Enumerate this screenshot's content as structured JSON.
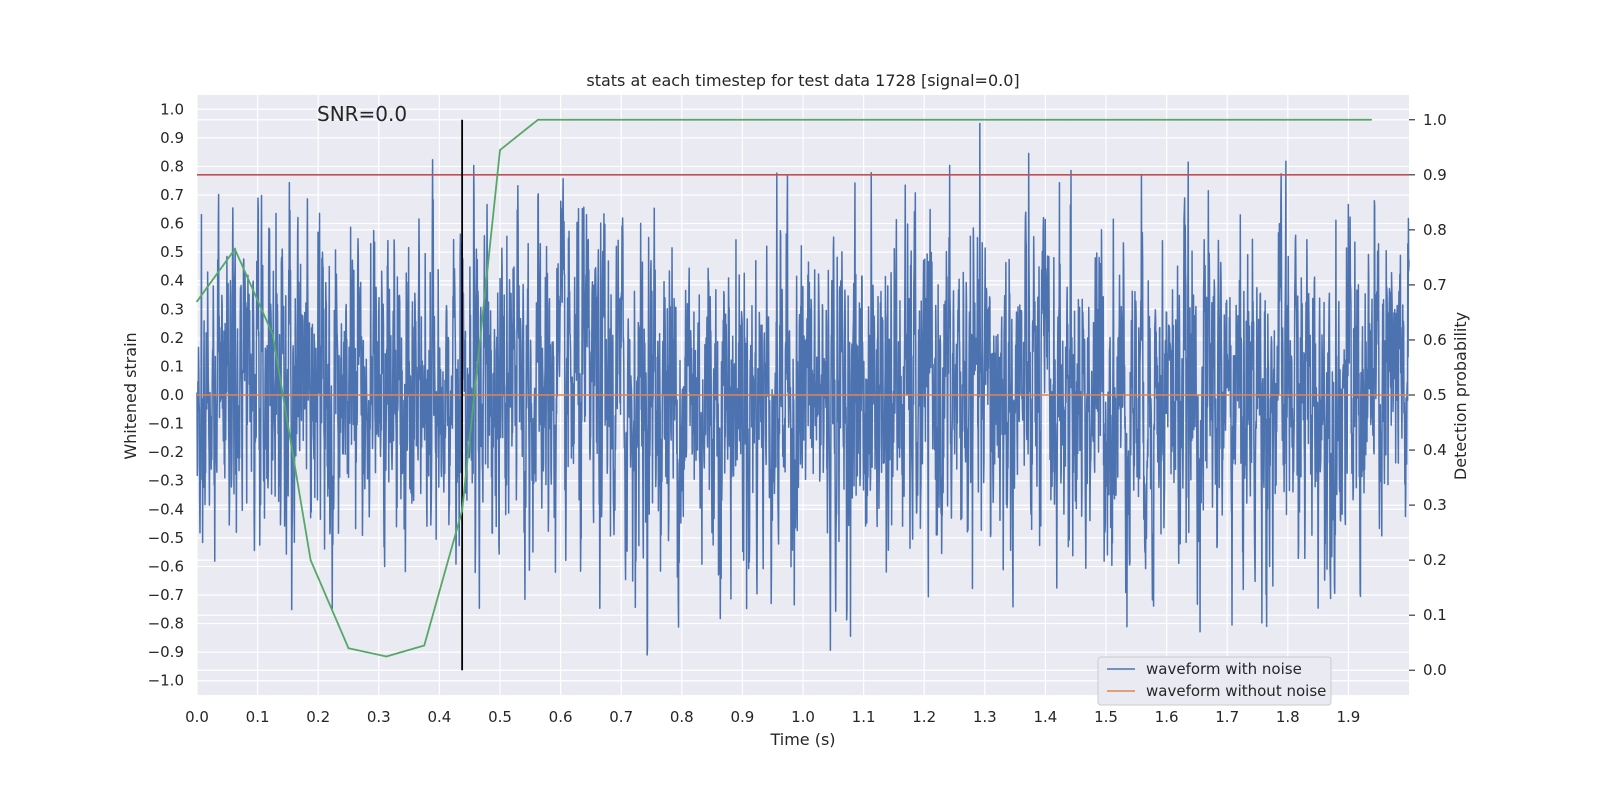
{
  "chart_data": {
    "type": "line",
    "title": "stats at each timestep for test data 1728 [signal=0.0]",
    "xlabel": "Time (s)",
    "ylabel": "Whitened strain",
    "y2label": "Detection probability",
    "xlim": [
      0.0,
      2.0
    ],
    "ylim": [
      -1.05,
      1.05
    ],
    "y2lim": [
      -0.045,
      1.045
    ],
    "x_ticks": [
      0.0,
      0.1,
      0.2,
      0.3,
      0.4,
      0.5,
      0.6,
      0.7,
      0.8,
      0.9,
      1.0,
      1.1,
      1.2,
      1.3,
      1.4,
      1.5,
      1.6,
      1.7,
      1.8,
      1.9
    ],
    "x_tick_labels": [
      "0.0",
      "0.1",
      "0.2",
      "0.3",
      "0.4",
      "0.5",
      "0.6",
      "0.7",
      "0.8",
      "0.9",
      "1.0",
      "1.1",
      "1.2",
      "1.3",
      "1.4",
      "1.5",
      "1.6",
      "1.7",
      "1.8",
      "1.9"
    ],
    "y_ticks": [
      -1.0,
      -0.9,
      -0.8,
      -0.7,
      -0.6,
      -0.5,
      -0.4,
      -0.3,
      -0.2,
      -0.1,
      0.0,
      0.1,
      0.2,
      0.3,
      0.4,
      0.5,
      0.6,
      0.7,
      0.8,
      0.9,
      1.0
    ],
    "y_tick_labels": [
      "−1.0",
      "−0.9",
      "−0.8",
      "−0.7",
      "−0.6",
      "−0.5",
      "−0.4",
      "−0.3",
      "−0.2",
      "−0.1",
      "0.0",
      "0.1",
      "0.2",
      "0.3",
      "0.4",
      "0.5",
      "0.6",
      "0.7",
      "0.8",
      "0.9",
      "1.0"
    ],
    "y2_ticks": [
      0.0,
      0.1,
      0.2,
      0.3,
      0.4,
      0.5,
      0.6,
      0.7,
      0.8,
      0.9,
      1.0
    ],
    "y2_tick_labels": [
      "0.0",
      "0.1",
      "0.2",
      "0.3",
      "0.4",
      "0.5",
      "0.6",
      "0.7",
      "0.8",
      "0.9",
      "1.0"
    ],
    "grid": true,
    "legend_position": "bottom-right",
    "annotation": "SNR=0.0",
    "series": [
      {
        "name": "waveform with noise",
        "axis": "left",
        "color": "#4c72b0",
        "x_range": [
          0.0,
          2.0
        ],
        "points": 4096,
        "amplitude_range": [
          -0.91,
          1.0
        ]
      },
      {
        "name": "waveform without noise",
        "axis": "left",
        "color": "#dd8452",
        "x": [
          0.0,
          2.0
        ],
        "y": [
          0.0,
          0.0
        ]
      },
      {
        "name": "",
        "axis": "right",
        "color": "#55a868",
        "x": [
          0.0,
          0.0625,
          0.125,
          0.1875,
          0.25,
          0.3125,
          0.375,
          0.4375,
          0.5,
          0.5625,
          0.625,
          0.6875,
          0.75,
          0.8125,
          0.875,
          0.9375,
          1.0,
          1.0625,
          1.125,
          1.1875,
          1.25,
          1.3125,
          1.375,
          1.4375,
          1.5,
          1.5625,
          1.625,
          1.6875,
          1.75,
          1.8125,
          1.875,
          1.9375
        ],
        "y": [
          0.67,
          0.765,
          0.61,
          0.2,
          0.04,
          0.025,
          0.045,
          0.29,
          0.945,
          1.0,
          1.0,
          1.0,
          1.0,
          1.0,
          1.0,
          1.0,
          1.0,
          1.0,
          1.0,
          1.0,
          1.0,
          1.0,
          1.0,
          1.0,
          1.0,
          1.0,
          1.0,
          1.0,
          1.0,
          1.0,
          1.0,
          1.0
        ]
      }
    ],
    "threshold": {
      "axis": "right",
      "value": 0.9,
      "color": "#c44e52"
    },
    "marker_line": {
      "x": 0.4375,
      "y2_range": [
        0.0,
        1.0
      ],
      "color": "#000000"
    }
  }
}
